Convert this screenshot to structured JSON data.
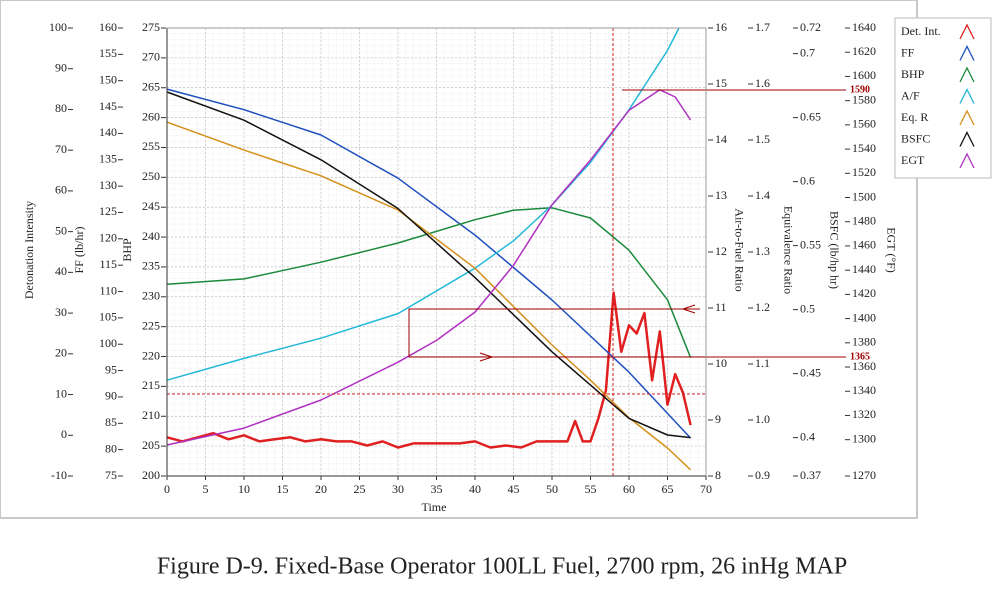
{
  "chart_data": {
    "type": "line",
    "title": "Figure D-9.  Fixed-Base Operator 100LL Fuel, 2700 rpm, 26 inHg MAP",
    "x_label": "Time",
    "xlim": [
      0,
      70
    ],
    "xticks": [
      0,
      5,
      10,
      15,
      20,
      25,
      30,
      35,
      40,
      45,
      50,
      55,
      60,
      65,
      70
    ],
    "y_axes": [
      {
        "label": "Detonation Intensity",
        "lim": [
          -10,
          100
        ],
        "ticks": [
          -10,
          0,
          10,
          20,
          30,
          40,
          50,
          60,
          70,
          80,
          90,
          100
        ]
      },
      {
        "label": "FF (lb/hr)",
        "lim": [
          75,
          160
        ],
        "ticks": [
          75,
          80,
          85,
          90,
          95,
          100,
          105,
          110,
          115,
          120,
          125,
          130,
          135,
          140,
          145,
          150,
          155,
          160
        ]
      },
      {
        "label": "BHP",
        "lim": [
          200,
          275
        ],
        "ticks": [
          200,
          205,
          210,
          215,
          220,
          225,
          230,
          235,
          240,
          245,
          250,
          255,
          260,
          265,
          270,
          275
        ]
      },
      {
        "label": "Air-to-Fuel Ratio",
        "lim": [
          8,
          16
        ],
        "ticks": [
          8,
          9,
          10,
          11,
          12,
          13,
          14,
          15,
          16
        ]
      },
      {
        "label": "Equivalence Ratio",
        "lim": [
          0.9,
          1.7
        ],
        "ticks": [
          0.9,
          {
            "value": 1,
            "label": "1.0"
          },
          1.1,
          1.2,
          1.3,
          1.4,
          1.5,
          1.6,
          1.7
        ]
      },
      {
        "label": "BSFC (lb/hp hr)",
        "lim": [
          0.37,
          0.72
        ],
        "ticks": [
          0.37,
          0.4,
          0.45,
          0.5,
          0.55,
          0.6,
          0.65,
          0.7,
          0.72
        ]
      },
      {
        "label": "EGT (°F)",
        "lim": [
          1270,
          1640
        ],
        "ticks": [
          1270,
          1300,
          1320,
          1340,
          1360,
          1380,
          1400,
          1420,
          1440,
          1460,
          1480,
          1500,
          1520,
          1540,
          1560,
          1580,
          1600,
          1620,
          1640
        ]
      }
    ],
    "series": [
      {
        "name": "Det. Int.",
        "color": "#e02020",
        "axis": 0,
        "x": [
          0,
          2,
          4,
          6,
          8,
          10,
          12,
          14,
          16,
          18,
          20,
          22,
          24,
          26,
          28,
          30,
          32,
          34,
          36,
          38,
          40,
          42,
          44,
          46,
          48,
          50,
          52,
          53,
          54,
          55,
          56,
          57,
          58,
          59,
          60,
          61,
          62,
          63,
          64,
          65,
          66,
          67,
          68
        ],
        "values": [
          -0.5,
          -1.5,
          -0.5,
          0.5,
          -1,
          0,
          -1.5,
          -1,
          -0.5,
          -1.5,
          -1,
          -1.5,
          -1.5,
          -2.5,
          -1.5,
          -3,
          -2,
          -2,
          -2,
          -2,
          -1.5,
          -3,
          -2.5,
          -3,
          -1.5,
          -1.5,
          -1.5,
          3.5,
          -1.5,
          -1.5,
          4,
          11,
          35,
          20.5,
          27,
          25,
          30,
          13.5,
          25.5,
          7.5,
          15,
          10.5,
          2.5
        ]
      },
      {
        "name": "FF",
        "color": "#1f4fbf",
        "axis": 1,
        "x": [
          0,
          10,
          20,
          30,
          40,
          50,
          60,
          68
        ],
        "values": [
          148.4,
          144.5,
          139.7,
          131.5,
          120.7,
          108.4,
          94.7,
          82.2
        ]
      },
      {
        "name": "BHP",
        "color": "#1a8a3a",
        "axis": 2,
        "x": [
          0,
          10,
          20,
          30,
          40,
          45,
          50,
          55,
          60,
          65,
          68
        ],
        "values": [
          232.1,
          233,
          235.8,
          239,
          242.9,
          244.5,
          244.9,
          243.2,
          237.8,
          229.5,
          219.8
        ]
      },
      {
        "name": "A/F",
        "color": "#22b8d8",
        "axis": 3,
        "x": [
          0,
          10,
          20,
          30,
          40,
          45,
          50,
          55,
          60,
          65,
          66.5
        ],
        "values": [
          9.71,
          10.1,
          10.46,
          10.9,
          11.71,
          12.2,
          12.84,
          13.6,
          14.54,
          15.6,
          16
        ]
      },
      {
        "name": "Eq. R",
        "color": "#d4901a",
        "axis": 4,
        "x": [
          0,
          10,
          20,
          30,
          40,
          50,
          55,
          60,
          65,
          68
        ],
        "values": [
          1.532,
          1.482,
          1.436,
          1.375,
          1.271,
          1.134,
          1.071,
          1.004,
          0.95,
          0.911
        ]
      },
      {
        "name": "BSFC",
        "color": "#111111",
        "axis": 5,
        "x": [
          0,
          10,
          20,
          30,
          40,
          50,
          55,
          60,
          65,
          68
        ],
        "values": [
          0.67,
          0.648,
          0.617,
          0.579,
          0.525,
          0.467,
          0.441,
          0.415,
          0.402,
          0.4
        ]
      },
      {
        "name": "EGT",
        "color": "#b030c0",
        "axis": 6,
        "x": [
          0,
          10,
          20,
          30,
          35,
          40,
          45,
          50,
          55,
          60,
          64,
          66,
          68
        ],
        "values": [
          1295.6,
          1309.6,
          1332.8,
          1364,
          1382,
          1405.4,
          1444,
          1494,
          1531,
          1572,
          1589,
          1583,
          1564
        ]
      }
    ],
    "annotations": [
      "1590",
      "1365"
    ]
  }
}
